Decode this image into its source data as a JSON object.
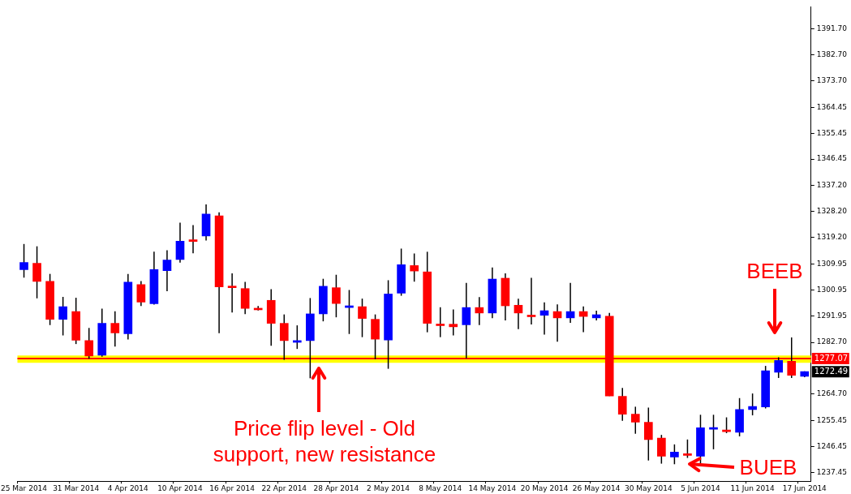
{
  "chart_data": {
    "type": "candlestick",
    "categories": [
      "25 Mar 2014",
      null,
      null,
      null,
      "31 Mar 2014",
      null,
      null,
      null,
      "4 Apr 2014",
      null,
      null,
      null,
      "10 Apr 2014",
      null,
      null,
      null,
      "16 Apr 2014",
      null,
      null,
      null,
      "22 Apr 2014",
      null,
      null,
      null,
      "28 Apr 2014",
      null,
      null,
      null,
      "2 May 2014",
      null,
      null,
      null,
      "8 May 2014",
      null,
      null,
      null,
      "14 May 2014",
      null,
      null,
      null,
      "20 May 2014",
      null,
      null,
      null,
      "26 May 2014",
      null,
      null,
      null,
      "30 May 2014",
      null,
      null,
      null,
      "5 Jun 2014",
      null,
      null,
      null,
      "11 Jun 2014",
      null,
      null,
      null,
      "17 Jun 2014"
    ],
    "ohlc": [
      [
        1308.0,
        1316.9,
        1305.2,
        1310.5
      ],
      [
        1310.2,
        1316.1,
        1298.0,
        1303.9
      ],
      [
        1303.9,
        1306.5,
        1288.7,
        1290.7
      ],
      [
        1290.7,
        1298.5,
        1285.1,
        1295.1
      ],
      [
        1293.4,
        1298.2,
        1282.1,
        1283.4
      ],
      [
        1283.3,
        1287.7,
        1277.0,
        1277.9
      ],
      [
        1278.2,
        1294.4,
        1277.7,
        1289.3
      ],
      [
        1289.3,
        1293.5,
        1281.2,
        1286.0
      ],
      [
        1285.7,
        1306.5,
        1283.7,
        1303.6
      ],
      [
        1302.8,
        1304.0,
        1295.3,
        1296.7
      ],
      [
        1296.1,
        1314.2,
        1295.8,
        1308.0
      ],
      [
        1307.6,
        1314.7,
        1300.5,
        1311.3
      ],
      [
        1311.5,
        1324.3,
        1310.4,
        1317.9
      ],
      [
        1317.9,
        1323.5,
        1313.7,
        1317.8
      ],
      [
        1319.7,
        1330.7,
        1318.1,
        1327.3
      ],
      [
        1326.7,
        1327.9,
        1285.9,
        1302.0
      ],
      [
        1301.8,
        1306.7,
        1293.1,
        1301.7
      ],
      [
        1301.4,
        1303.7,
        1292.5,
        1294.5
      ],
      [
        1294.1,
        1295.3,
        1293.8,
        1294.0
      ],
      [
        1297.3,
        1301.2,
        1281.5,
        1289.3
      ],
      [
        1289.3,
        1292.4,
        1276.6,
        1283.3
      ],
      [
        1282.7,
        1288.6,
        1280.4,
        1283.3
      ],
      [
        1283.3,
        1298.1,
        1270.2,
        1292.6
      ],
      [
        1292.6,
        1304.8,
        1290.0,
        1302.2
      ],
      [
        1301.7,
        1306.2,
        1291.4,
        1296.2
      ],
      [
        1294.8,
        1300.9,
        1285.6,
        1295.4
      ],
      [
        1295.1,
        1297.9,
        1284.5,
        1291.0
      ],
      [
        1290.7,
        1292.4,
        1276.8,
        1283.8
      ],
      [
        1283.5,
        1304.3,
        1273.5,
        1299.5
      ],
      [
        1299.8,
        1315.3,
        1298.9,
        1309.7
      ],
      [
        1309.4,
        1313.6,
        1303.8,
        1307.5
      ],
      [
        1307.2,
        1314.2,
        1286.2,
        1289.3
      ],
      [
        1289.0,
        1294.9,
        1284.5,
        1288.5
      ],
      [
        1289.0,
        1294.1,
        1285.1,
        1288.1
      ],
      [
        1288.8,
        1303.4,
        1277.1,
        1294.8
      ],
      [
        1294.8,
        1298.4,
        1288.7,
        1292.9
      ],
      [
        1292.9,
        1308.7,
        1291.1,
        1304.7
      ],
      [
        1305.0,
        1306.7,
        1290.3,
        1295.4
      ],
      [
        1295.6,
        1297.9,
        1287.3,
        1292.9
      ],
      [
        1291.7,
        1305.1,
        1288.9,
        1291.6
      ],
      [
        1292.1,
        1296.6,
        1285.4,
        1293.7
      ],
      [
        1293.4,
        1295.9,
        1282.9,
        1291.2
      ],
      [
        1291.2,
        1303.4,
        1289.5,
        1293.4
      ],
      [
        1293.4,
        1295.2,
        1286.2,
        1291.7
      ],
      [
        1291.2,
        1293.7,
        1290.3,
        1292.3
      ],
      [
        1291.8,
        1292.9,
        1264.0,
        1264.0
      ],
      [
        1263.9,
        1266.8,
        1255.4,
        1257.7
      ],
      [
        1257.7,
        1260.3,
        1250.9,
        1254.9
      ],
      [
        1254.9,
        1260.0,
        1241.6,
        1248.9
      ],
      [
        1249.4,
        1250.5,
        1240.5,
        1243.1
      ],
      [
        1242.8,
        1247.2,
        1240.3,
        1244.5
      ],
      [
        1243.9,
        1248.9,
        1242.5,
        1243.4
      ],
      [
        1243.1,
        1257.5,
        1240.5,
        1253.0
      ],
      [
        1252.5,
        1257.5,
        1245.5,
        1252.6
      ],
      [
        1252.2,
        1256.6,
        1251.1,
        1251.6
      ],
      [
        1251.4,
        1263.3,
        1250.0,
        1259.3
      ],
      [
        1259.3,
        1264.9,
        1257.3,
        1260.4
      ],
      [
        1260.2,
        1274.5,
        1259.7,
        1272.8
      ],
      [
        1272.3,
        1277.5,
        1270.3,
        1276.4
      ],
      [
        1276.1,
        1284.4,
        1270.3,
        1271.2
      ],
      [
        1270.9,
        1272.6,
        1270.6,
        1272.49
      ]
    ],
    "colors": [
      "#0000ff",
      "#ff0000",
      "#ff0000",
      "#0000ff",
      "#ff0000",
      "#ff0000",
      "#0000ff",
      "#ff0000",
      "#0000ff",
      "#ff0000",
      "#0000ff",
      "#0000ff",
      "#0000ff",
      "#ff0000",
      "#0000ff",
      "#ff0000",
      "#ff0000",
      "#ff0000",
      "#ff0000",
      "#ff0000",
      "#ff0000",
      "#0000ff",
      "#0000ff",
      "#0000ff",
      "#ff0000",
      "#0000ff",
      "#ff0000",
      "#ff0000",
      "#0000ff",
      "#0000ff",
      "#ff0000",
      "#ff0000",
      "#ff0000",
      "#ff0000",
      "#0000ff",
      "#ff0000",
      "#0000ff",
      "#ff0000",
      "#ff0000",
      "#ff0000",
      "#0000ff",
      "#ff0000",
      "#0000ff",
      "#ff0000",
      "#0000ff",
      "#ff0000",
      "#ff0000",
      "#ff0000",
      "#ff0000",
      "#ff0000",
      "#0000ff",
      "#ff0000",
      "#0000ff",
      "#0000ff",
      "#ff0000",
      "#0000ff",
      "#0000ff",
      "#0000ff",
      "#0000ff",
      "#ff0000",
      "#0000ff"
    ],
    "ylim": [
      1234.4,
      1399.4
    ],
    "yticks": [
      {
        "value": 1237.45,
        "label": "1237.45"
      },
      {
        "value": 1246.45,
        "label": "1246.45"
      },
      {
        "value": 1255.45,
        "label": "1255.45"
      },
      {
        "value": 1264.7,
        "label": "1264.70"
      },
      {
        "value": 1282.7,
        "label": "1282.70"
      },
      {
        "value": 1291.95,
        "label": "1291.95"
      },
      {
        "value": 1300.95,
        "label": "1300.95"
      },
      {
        "value": 1309.95,
        "label": "1309.95"
      },
      {
        "value": 1319.2,
        "label": "1319.20"
      },
      {
        "value": 1328.2,
        "label": "1328.20"
      },
      {
        "value": 1337.2,
        "label": "1337.20"
      },
      {
        "value": 1346.45,
        "label": "1346.45"
      },
      {
        "value": 1355.45,
        "label": "1355.45"
      },
      {
        "value": 1364.45,
        "label": "1364.45"
      },
      {
        "value": 1373.7,
        "label": "1373.70"
      },
      {
        "value": 1382.7,
        "label": "1382.70"
      },
      {
        "value": 1391.7,
        "label": "1391.70"
      }
    ],
    "grid": false,
    "legend": false,
    "bands": [
      {
        "axis": "y",
        "from": 1275.6,
        "to": 1278.1,
        "color": "#ffff00"
      }
    ],
    "ref_lines": [
      {
        "axis": "y",
        "value": 1277.07,
        "label": "1277.07",
        "color": "#ff0000"
      }
    ],
    "annotations": [
      "BEEB",
      "BUEB",
      "Price flip level - Old support, new resistance",
      "1272.49"
    ]
  }
}
